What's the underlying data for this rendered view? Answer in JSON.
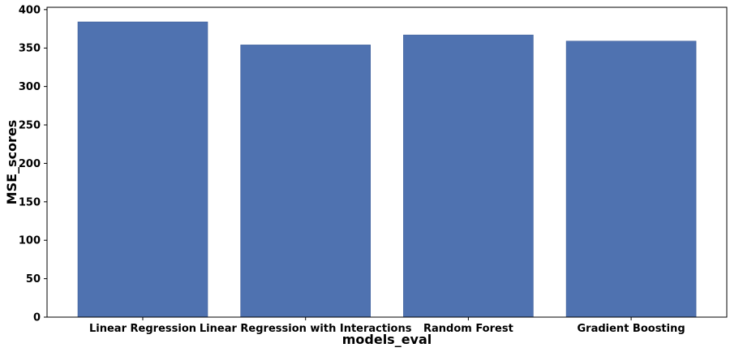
{
  "chart_data": {
    "type": "bar",
    "title": "",
    "xlabel": "models_eval",
    "ylabel": "MSE_scores",
    "categories": [
      "Linear Regression",
      "Linear Regression with Interactions",
      "Random Forest",
      "Gradient Boosting"
    ],
    "values": [
      384,
      354,
      367,
      359
    ],
    "ylim": [
      0,
      403
    ],
    "yticks": [
      "0",
      "50",
      "100",
      "150",
      "200",
      "250",
      "300",
      "350",
      "400"
    ],
    "grid": false,
    "legend": "none",
    "bar_color": "#4f72b0"
  }
}
